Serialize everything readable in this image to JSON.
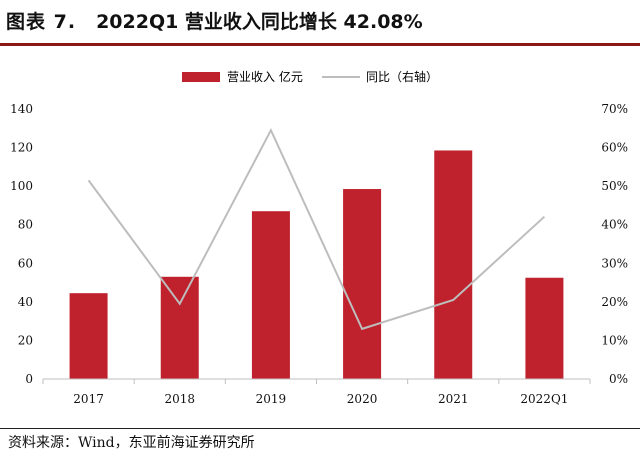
{
  "figure": {
    "label": "图表 7.",
    "title": "2022Q1 营业收入同比增长 42.08%"
  },
  "source": {
    "label": "资料来源：",
    "text": "Wind，东亚前海证券研究所"
  },
  "colors": {
    "bar": "#c0222d",
    "line": "#bdbdbd",
    "rule": "#8a1818"
  },
  "chart_data": {
    "type": "bar",
    "categories": [
      "2017",
      "2018",
      "2019",
      "2020",
      "2021",
      "2022Q1"
    ],
    "series": [
      {
        "name": "营业收入 亿元",
        "type": "bar",
        "axis": "left",
        "values": [
          44.5,
          53,
          87,
          98.5,
          118.5,
          52.5
        ]
      },
      {
        "name": "同比（右轴）",
        "type": "line",
        "axis": "right",
        "values": [
          51.5,
          19.5,
          64.5,
          13,
          20.5,
          42.08
        ]
      }
    ],
    "ylim_left": [
      0,
      140
    ],
    "yticks_left": [
      "0",
      "20",
      "40",
      "60",
      "80",
      "100",
      "120",
      "140"
    ],
    "ylim_right": [
      0,
      70
    ],
    "yticks_right": [
      "0%",
      "10%",
      "20%",
      "30%",
      "40%",
      "50%",
      "60%",
      "70%"
    ],
    "legend_position": "top-center",
    "grid": false
  }
}
